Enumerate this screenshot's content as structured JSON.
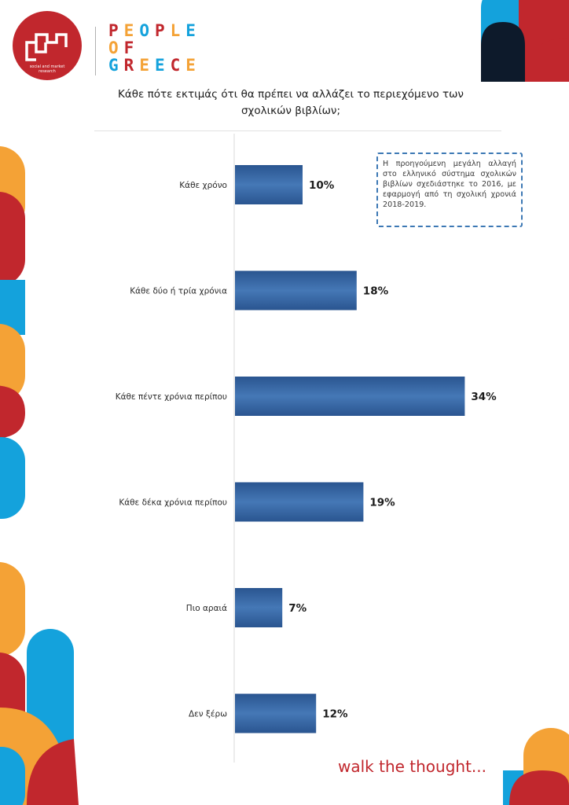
{
  "brand": {
    "logo_caption": "social and market research",
    "name_lines": [
      "PEOPLE",
      "OF",
      "GREECE"
    ]
  },
  "tagline": "walk the thought...",
  "note": "Η προηγούμενη μεγάλη αλλαγή στο ελληνικό σύστημα σχολικών βιβλίων σχεδιάστηκε το 2016, με εφαρμογή από τη σχολική χρονιά 2018-2019.",
  "chart_data": {
    "type": "bar",
    "orientation": "horizontal",
    "title": "Κάθε πότε εκτιμάς ότι θα πρέπει να αλλάζει το περιεχόμενο των σχολικών βιβλίων;",
    "categories": [
      "Κάθε χρόνο",
      "Κάθε δύο ή τρία χρόνια",
      "Κάθε πέντε χρόνια περίπου",
      "Κάθε δέκα χρόνια περίπου",
      "Πιο αραιά",
      "Δεν ξέρω"
    ],
    "values": [
      10,
      18,
      34,
      19,
      7,
      12
    ],
    "value_labels": [
      "10%",
      "18%",
      "34%",
      "19%",
      "7%",
      "12%"
    ],
    "unit": "%",
    "grid": false,
    "legend": "none"
  },
  "colors": {
    "bar": "#2f5d96",
    "bar_light": "#4a7fbd",
    "brand_red": "#c1272d",
    "brand_orange": "#f4a236",
    "brand_blue": "#14a2dc",
    "brand_navy": "#0d1a2b",
    "note_border": "#3c78b4"
  }
}
